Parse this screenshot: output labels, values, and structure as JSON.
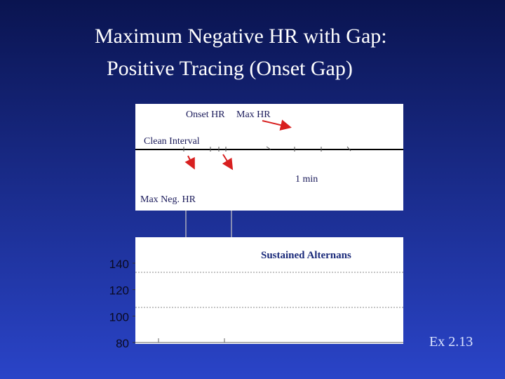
{
  "title_lines": [
    "Maximum Negative HR with Gap:",
    "Positive Tracing (Onset Gap)"
  ],
  "upper_panel": {
    "labels": {
      "onset_hr": "Onset HR",
      "max_hr": "Max HR",
      "clean_interval": "Clean Interval",
      "time_scale": "1 min",
      "max_neg_hr": "Max Neg. HR"
    }
  },
  "lower_panel": {
    "label": "Sustained Alternans",
    "ylim": [
      80,
      140
    ],
    "yticks": [
      140,
      120,
      100,
      80
    ]
  },
  "footer": "Ex 2.13"
}
